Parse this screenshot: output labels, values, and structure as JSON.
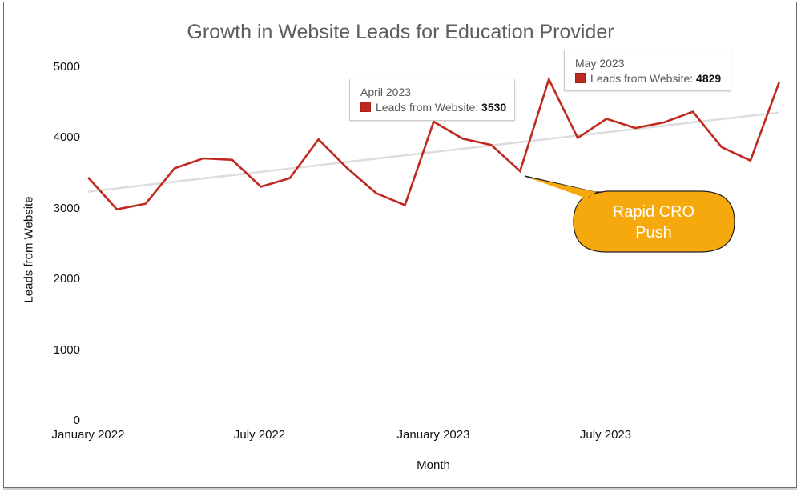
{
  "chart_data": {
    "type": "line",
    "title": "Growth in Website Leads for Education Provider",
    "xlabel": "Month",
    "ylabel": "Leads from Website",
    "ylim": [
      0,
      5000
    ],
    "yticks": [
      0,
      1000,
      2000,
      3000,
      4000,
      5000
    ],
    "xticks": [
      "January 2022",
      "July 2022",
      "January 2023",
      "July 2023"
    ],
    "grid": false,
    "legend": "none",
    "categories": [
      "January 2022",
      "February 2022",
      "March 2022",
      "April 2022",
      "May 2022",
      "June 2022",
      "July 2022",
      "August 2022",
      "September 2022",
      "October 2022",
      "November 2022",
      "December 2022",
      "January 2023",
      "February 2023",
      "March 2023",
      "April 2023",
      "May 2023",
      "June 2023",
      "July 2023",
      "August 2023",
      "September 2023",
      "October 2023",
      "November 2023",
      "December 2023",
      "January 2024"
    ],
    "series": [
      {
        "name": "Leads from Website",
        "color": "#c0291f",
        "values": [
          3440,
          2990,
          3070,
          3570,
          3710,
          3690,
          3310,
          3430,
          3980,
          3570,
          3220,
          3050,
          4230,
          3990,
          3900,
          3530,
          4829,
          4000,
          4270,
          4140,
          4220,
          4370,
          3870,
          3680,
          4790
        ]
      },
      {
        "name": "Trendline",
        "type": "linear-trend",
        "color": "#dddddd",
        "values": [
          3240,
          4360
        ]
      }
    ],
    "annotations": [
      {
        "type": "tooltip",
        "title": "April 2023",
        "label": "Leads from Website",
        "value": "3530"
      },
      {
        "type": "tooltip",
        "title": "May 2023",
        "label": "Leads from Website",
        "value": "4829"
      },
      {
        "type": "callout",
        "text_line1": "Rapid CRO",
        "text_line2": "Push",
        "points_to": "April 2023",
        "color": "#f6a90c"
      }
    ]
  },
  "tooltips": [
    {
      "title": "April 2023",
      "label": "Leads from Website",
      "sep": ": ",
      "value": "3530"
    },
    {
      "title": "May 2023",
      "label": "Leads from Website",
      "sep": ": ",
      "value": "4829"
    }
  ],
  "callout": {
    "line1": "Rapid CRO",
    "line2": "Push"
  }
}
